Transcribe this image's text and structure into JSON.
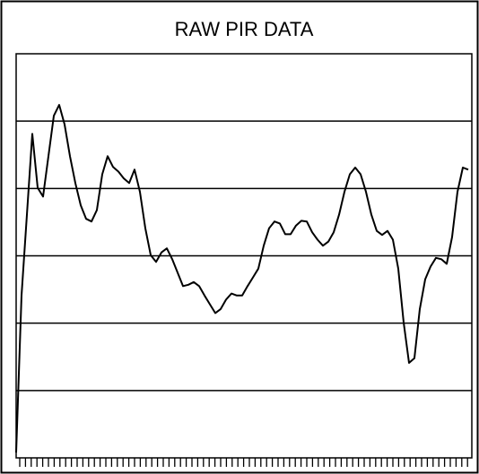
{
  "chart_data": {
    "type": "line",
    "title": "RAW PIR DATA",
    "values": [
      0.08,
      2.41,
      3.61,
      4.81,
      4.01,
      3.88,
      4.48,
      5.08,
      5.24,
      4.95,
      4.48,
      4.08,
      3.75,
      3.55,
      3.51,
      3.68,
      4.21,
      4.48,
      4.32,
      4.25,
      4.15,
      4.08,
      4.28,
      3.95,
      3.41,
      3.01,
      2.91,
      3.05,
      3.11,
      2.95,
      2.75,
      2.55,
      2.57,
      2.61,
      2.55,
      2.41,
      2.28,
      2.15,
      2.21,
      2.35,
      2.44,
      2.41,
      2.41,
      2.55,
      2.68,
      2.81,
      3.15,
      3.41,
      3.51,
      3.48,
      3.32,
      3.32,
      3.45,
      3.52,
      3.51,
      3.35,
      3.24,
      3.15,
      3.21,
      3.35,
      3.61,
      3.95,
      4.21,
      4.31,
      4.21,
      3.95,
      3.61,
      3.37,
      3.31,
      3.37,
      3.24,
      2.81,
      2.01,
      1.41,
      1.48,
      2.21,
      2.65,
      2.84,
      2.97,
      2.95,
      2.88,
      3.28,
      3.95,
      4.31,
      4.28
    ],
    "color": "#000000",
    "ylim": [
      0,
      6
    ],
    "yticks": [
      1,
      2,
      3,
      4,
      5
    ],
    "grid": true
  }
}
